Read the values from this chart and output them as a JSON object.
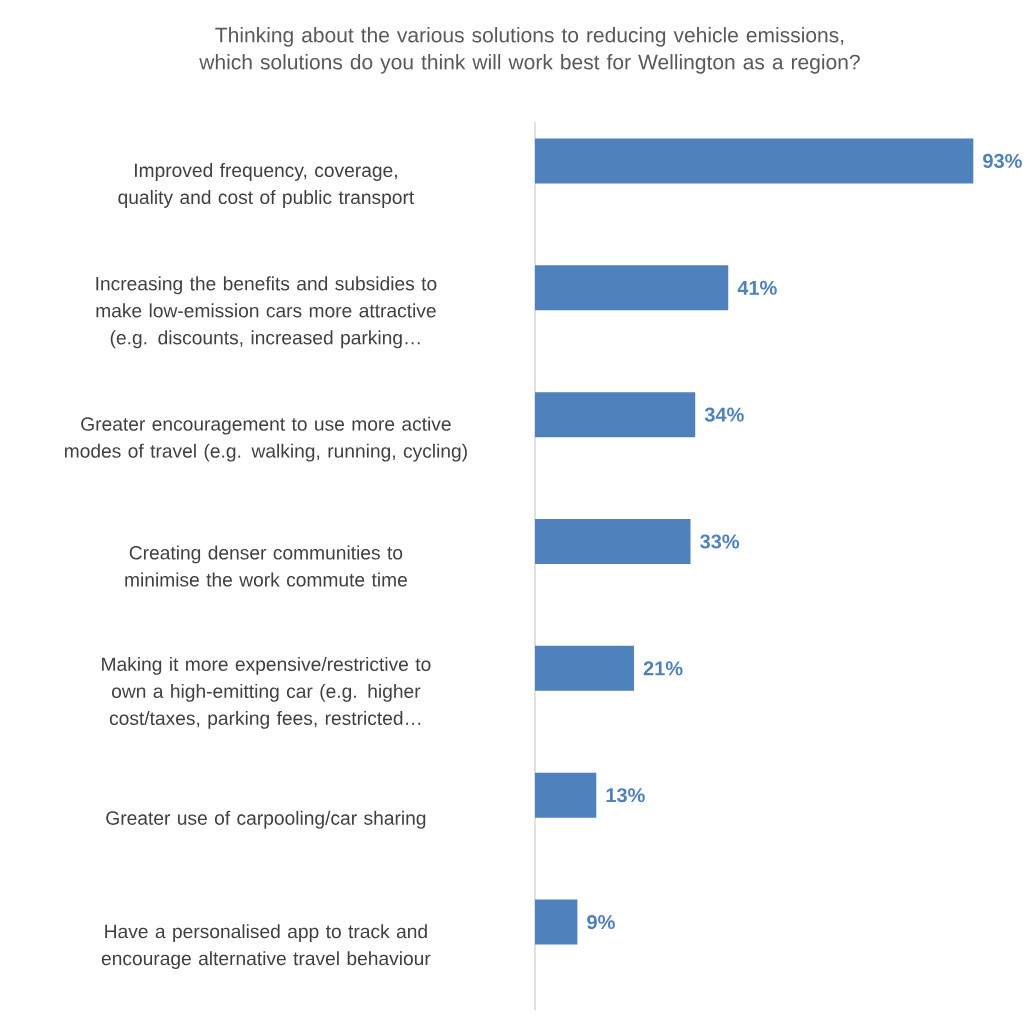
{
  "chart_data": {
    "type": "bar",
    "orientation": "horizontal",
    "title": "Thinking about the various solutions to reducing vehicle emissions, which solutions do you think will work best for Wellington as a region?",
    "categories": [
      "Improved frequency, coverage, quality and cost of public transport",
      "Increasing the benefits and subsidies to make low-emission cars more attractive (e.g. discounts, increased parking…",
      "Greater encouragement to use more active modes of travel (e.g. walking, running, cycling)",
      "Creating denser communities to minimise the work commute time",
      "Making it more expensive/restrictive to own a high-emitting car (e.g. higher cost/taxes, parking fees, restricted…",
      "Greater use of carpooling/car sharing",
      "Have a personalised app to track and encourage alternative travel behaviour"
    ],
    "values": [
      93,
      41,
      34,
      33,
      21,
      13,
      9
    ],
    "value_labels": [
      "93%",
      "41%",
      "34%",
      "33%",
      "21%",
      "13%",
      "9%"
    ],
    "color": "#4f81bd"
  }
}
